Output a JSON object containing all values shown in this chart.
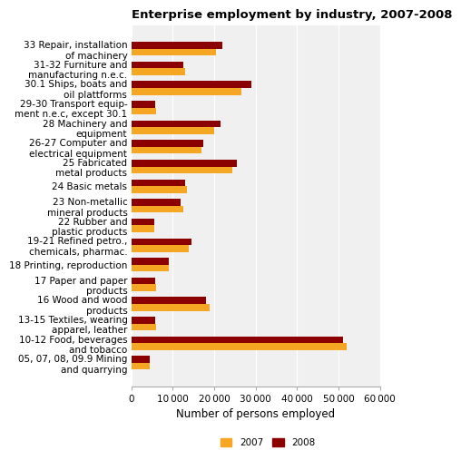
{
  "title": "Enterprise employment by industry, 2007-2008",
  "categories": [
    "33 Repair, installation\nof machinery",
    "31-32 Furniture and\nmanufacturing n.e.c.",
    "30.1 Ships, boats and\noil plattforms",
    "29-30 Transport equip-\nment n.e.c, except 30.1",
    "28 Machinery and\nequipment",
    "26-27 Computer and\nelectrical equipment",
    "25 Fabricated\nmetal products",
    "24 Basic metals",
    "23 Non-metallic\nmineral products",
    "22 Rubber and\nplastic products",
    "19-21 Refined petro.,\nchemicals, pharmac.",
    "18 Printing, reproduction",
    "17 Paper and paper\nproducts",
    "16 Wood and wood\nproducts",
    "13-15 Textiles, wearing\napparel, leather",
    "10-12 Food, beverages\nand tobacco",
    "05, 07, 08, 09.9 Mining\nand quarrying"
  ],
  "values_2007": [
    20500,
    13000,
    26500,
    6000,
    20000,
    17000,
    24500,
    13500,
    12500,
    5500,
    14000,
    9000,
    6000,
    19000,
    6000,
    52000,
    4500
  ],
  "values_2008": [
    22000,
    12500,
    29000,
    5800,
    21500,
    17500,
    25500,
    13000,
    12000,
    5500,
    14500,
    9000,
    5800,
    18000,
    5800,
    51000,
    4500
  ],
  "color_2007": "#f5a623",
  "color_2008": "#8b0000",
  "xlabel": "Number of persons employed",
  "xlim": [
    0,
    60000
  ],
  "xticks": [
    0,
    10000,
    20000,
    30000,
    40000,
    50000,
    60000
  ],
  "xticklabels": [
    "0",
    "10 000",
    "20 000",
    "30 000",
    "40 000",
    "50 000",
    "60 000"
  ],
  "legend_labels": [
    "2007",
    "2008"
  ],
  "background_color": "#f0f0f0",
  "title_fontsize": 9.5,
  "axis_fontsize": 8.5,
  "tick_fontsize": 7.5,
  "label_fontsize": 7.5
}
